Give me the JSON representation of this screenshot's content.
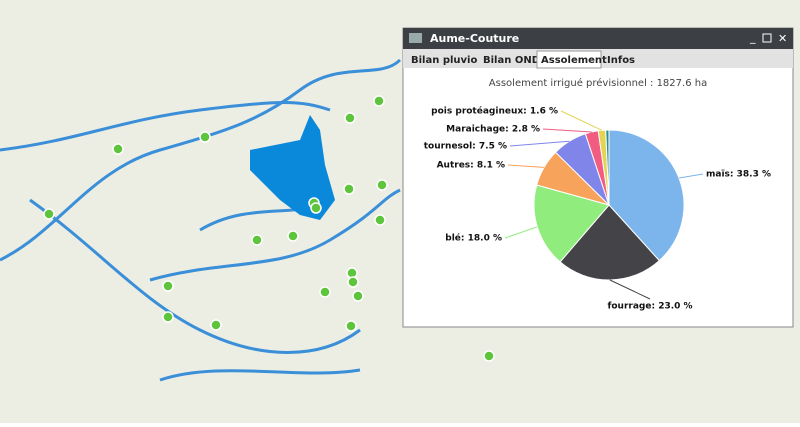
{
  "window": {
    "title": "Aume-Couture",
    "tabs": [
      "Bilan pluvio",
      "Bilan ONDE",
      "Assolement",
      "Infos"
    ],
    "active_tab": 2
  },
  "chart_data": {
    "type": "pie",
    "title": "Assolement irrigué prévisionnel : 1827.6 ha",
    "values": [
      38.3,
      23.0,
      18.0,
      8.1,
      7.5,
      2.8,
      1.6,
      0.7
    ],
    "value_labels": [
      "maïs: 38.3 %",
      "fourrage: 23.0 %",
      "blé: 18.0 %",
      "Autres: 8.1 %",
      "tournesol: 7.5 %",
      "Maraichage: 2.8 %",
      "pois protéagineux: 1.6 %",
      null
    ],
    "colors": [
      "#7cb5ec",
      "#434348",
      "#90ed7d",
      "#f7a35c",
      "#8085e9",
      "#f15c80",
      "#e4d354",
      "#2b908f"
    ]
  }
}
